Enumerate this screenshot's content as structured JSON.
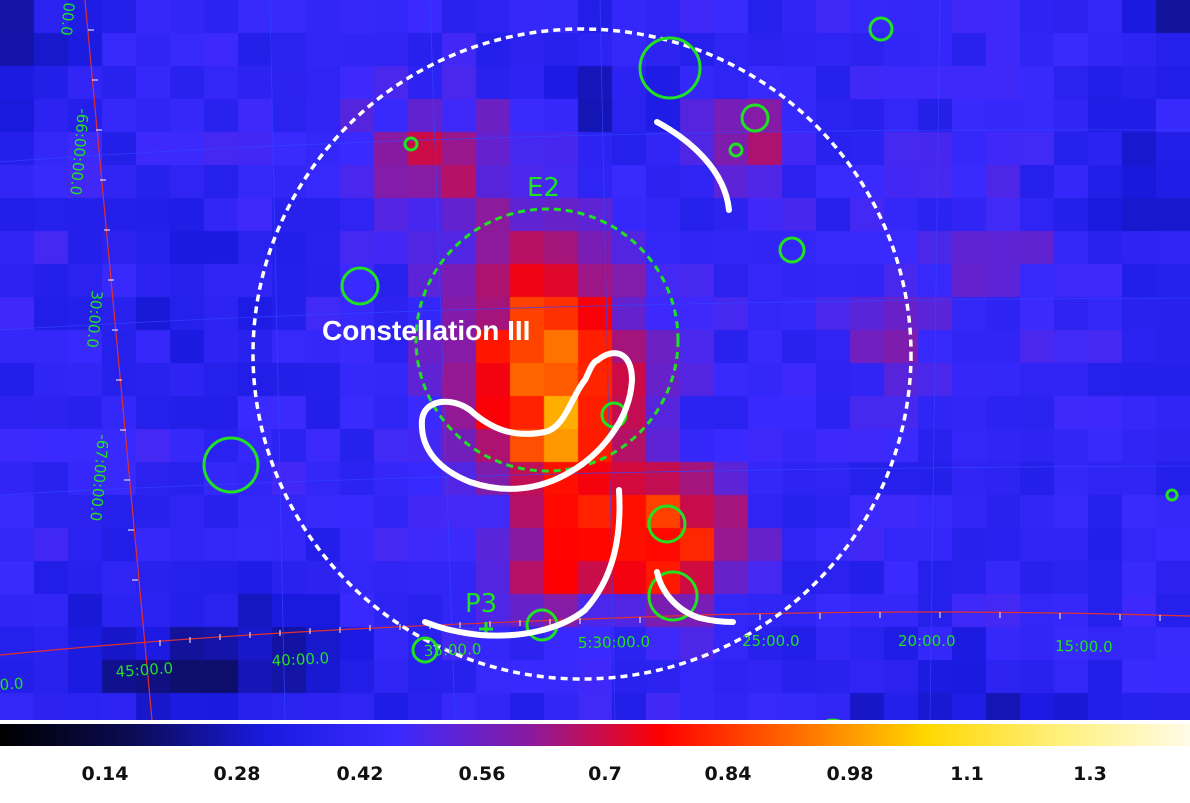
{
  "image": {
    "labels": {
      "region_name": "Constellation III",
      "source_e2": "E2",
      "source_p3": "P3"
    },
    "ra_labels": [
      "45:00.0",
      "40:00.0",
      "35:00.0",
      "5:30:00.0",
      "25:00.0",
      "20:00.0",
      "15:00.0",
      "0.0"
    ],
    "dec_labels": [
      "-66:00:00.0",
      "30:00.0",
      "-67:00:00.0",
      "00.0"
    ],
    "colormap": [
      "#000000",
      "#0b0b55",
      "#1a1ae0",
      "#3a2aff",
      "#8a1aa0",
      "#ff0000",
      "#ff6a00",
      "#ffd700",
      "#fff07a",
      "#fffbe6"
    ],
    "colorbar_ticks": [
      "0.14",
      "0.28",
      "0.42",
      "0.56",
      "0.7",
      "0.84",
      "0.98",
      "1.1",
      "1.3"
    ],
    "colors": {
      "region_white": "#ffffff",
      "source_green": "#22e022",
      "ra_grid": "#e03030",
      "dec_grid": "#3344ff"
    }
  }
}
